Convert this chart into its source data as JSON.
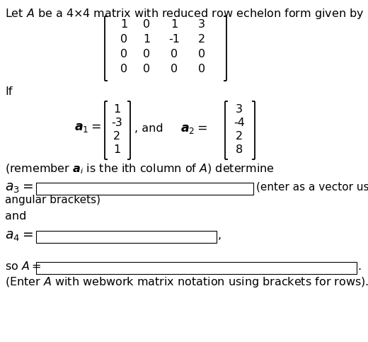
{
  "bg_color": "#ffffff",
  "rref_matrix": [
    [
      1,
      0,
      1,
      3
    ],
    [
      0,
      1,
      -1,
      2
    ],
    [
      0,
      0,
      0,
      0
    ],
    [
      0,
      0,
      0,
      0
    ]
  ],
  "a1_vec": [
    1,
    -3,
    2,
    1
  ],
  "a2_vec": [
    3,
    -4,
    2,
    8
  ],
  "font_size": 11.5
}
